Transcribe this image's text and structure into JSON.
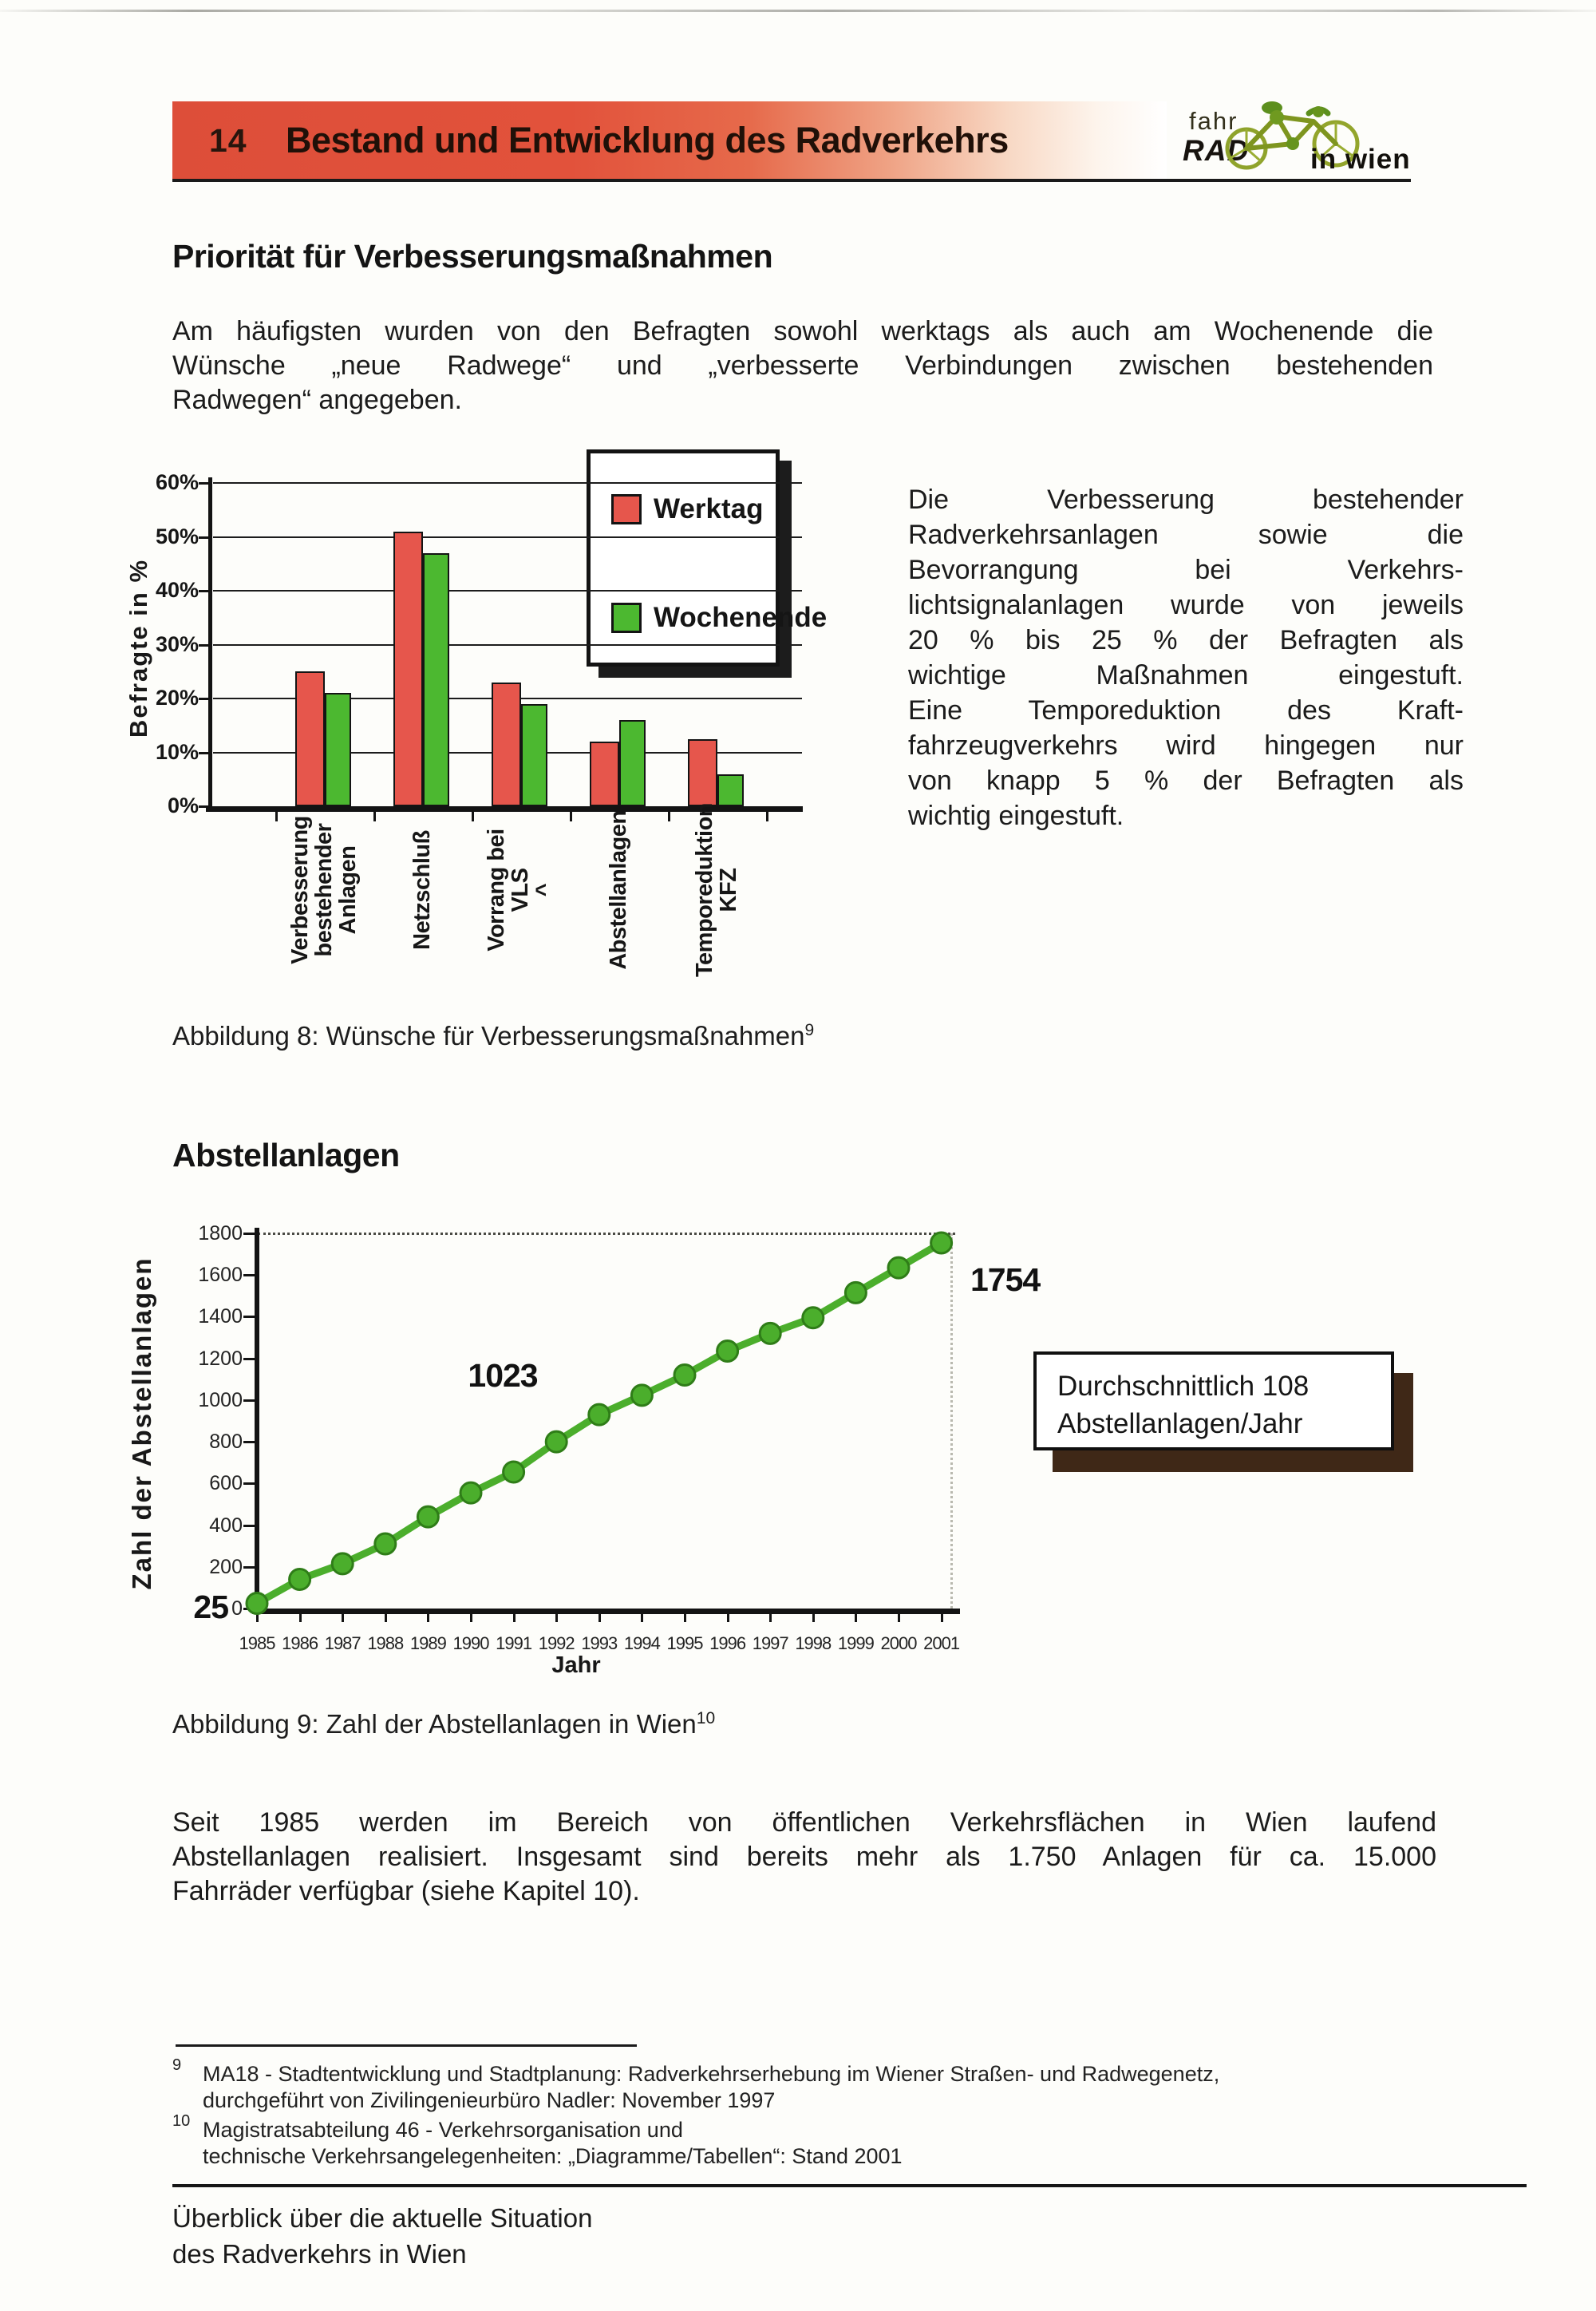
{
  "document": {
    "header": {
      "page_number": "14",
      "title": "Bestand und Entwicklung des Radverkehrs"
    },
    "logo": {
      "word_top": "fahr",
      "word_bottom": "RAD",
      "tagline": "in wien",
      "icon": "bicycle-icon"
    },
    "section_improvements": {
      "heading": "Priorität für Verbesserungsmaßnahmen",
      "paragraph_lines": [
        "Am häufigsten wurden von den Befragten sowohl werktags als auch am Wochenende die",
        "Wünsche „neue Radwege“ und „verbesserte Verbindungen zwischen bestehenden",
        "Radwegen“ angegeben."
      ],
      "side_text_lines": [
        "Die Verbesserung bestehender",
        "Radverkehrsanlagen sowie die",
        "Bevorrangung bei Verkehrs-",
        "lichtsignalanlagen wurde von jeweils",
        "20 % bis 25 % der Befragten als",
        "wichtige Maßnahmen eingestuft.",
        "Eine Temporeduktion des Kraft-",
        "fahrzeugverkehrs wird hingegen nur",
        "von knapp 5 % der Befragten als",
        "wichtig eingestuft."
      ]
    },
    "figure8": {
      "caption": "Abbildung 8: Wünsche für Verbesserungsmaßnahmen",
      "footnote_ref": "9"
    },
    "section_abstellanlagen": {
      "heading": "Abstellanlagen"
    },
    "callout": {
      "lines": [
        "Durchschnittlich 108",
        "Abstellanlagen/Jahr"
      ]
    },
    "figure9": {
      "caption": "Abbildung 9: Zahl der Abstellanlagen in Wien",
      "footnote_ref": "10"
    },
    "paragraph2_lines": [
      "Seit 1985 werden im Bereich von öffentlichen Verkehrsflächen in Wien laufend",
      "Abstellanlagen realisiert. Insgesamt sind bereits mehr als 1.750 Anlagen für ca. 15.000",
      "Fahrräder verfügbar (siehe Kapitel 10)."
    ],
    "footnotes": [
      {
        "ref": "9",
        "lines": [
          "MA18 - Stadtentwicklung und Stadtplanung: Radverkehrserhebung im Wiener Straßen- und Radwegenetz,",
          "durchgeführt von Zivilingenieurbüro Nadler: November 1997"
        ]
      },
      {
        "ref": "10",
        "lines": [
          "Magistratsabteilung 46 - Verkehrsorganisation und",
          "technische Verkehrsangelegenheiten: „Diagramme/Tabellen“: Stand 2001"
        ]
      }
    ],
    "footer_lines": [
      "Überblick über die aktuelle Situation",
      "des Radverkehrs in Wien"
    ]
  },
  "chart_data": [
    {
      "type": "bar",
      "title": "Wünsche für Verbesserungsmaßnahmen",
      "ylabel": "Befragte in %",
      "ylim": [
        0,
        60
      ],
      "yticks": [
        "0%",
        "10%",
        "20%",
        "30%",
        "40%",
        "50%",
        "60%"
      ],
      "grid": true,
      "legend_position": "top-right",
      "categories": [
        "Verbesserung bestehender Anlagen",
        "Netzschluß",
        "Vorrang bei VLS",
        "Abstellanlagen",
        "Temporeduktion KFZ"
      ],
      "category_label_lines": [
        [
          "Verbesserung",
          "bestehender",
          "Anlagen"
        ],
        [
          "Netzschluß"
        ],
        [
          "Vorrang bei",
          "VLS",
          "^"
        ],
        [
          "Abstellanlagen"
        ],
        [
          "Temporeduktion",
          "KFZ"
        ]
      ],
      "series": [
        {
          "name": "Werktag",
          "color": "#E6564C",
          "values": [
            25,
            51,
            23,
            12,
            12.5
          ]
        },
        {
          "name": "Wochenende",
          "color": "#4CB830",
          "values": [
            21,
            47,
            19,
            16,
            6
          ]
        }
      ],
      "unit": "percent"
    },
    {
      "type": "line",
      "xlabel": "Jahr",
      "ylabel": "Zahl der Abstellanlagen",
      "ylim": [
        0,
        1800
      ],
      "yticks": [
        0,
        200,
        400,
        600,
        800,
        1000,
        1200,
        1400,
        1600,
        1800
      ],
      "x": [
        "1985",
        "1986",
        "1987",
        "1988",
        "1989",
        "1990",
        "1991",
        "1992",
        "1993",
        "1994",
        "1995",
        "1996",
        "1997",
        "1998",
        "1999",
        "2000",
        "2001"
      ],
      "values": [
        25,
        140,
        215,
        310,
        440,
        555,
        655,
        800,
        930,
        1023,
        1120,
        1235,
        1320,
        1395,
        1515,
        1635,
        1754
      ],
      "line_color": "#4BAE2C",
      "marker": "circle",
      "annotations": [
        {
          "text": "25",
          "x": "1985",
          "value": 25
        },
        {
          "text": "1023",
          "x": "1994",
          "value": 1023
        },
        {
          "text": "1754",
          "x": "2001",
          "value": 1754
        }
      ]
    }
  ]
}
